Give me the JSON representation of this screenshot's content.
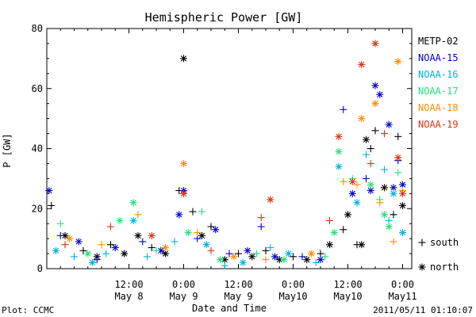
{
  "chart_data": {
    "type": "scatter",
    "title": "Hemispheric Power [GW]",
    "xlabel": "Date and Time",
    "ylabel": "P [GW]",
    "ylim": [
      0,
      80
    ],
    "xlim": [
      "2011-05-07 18:00",
      "2011-05-11 02:00"
    ],
    "yticks": [
      0,
      20,
      40,
      60,
      80
    ],
    "xticks": [
      {
        "x": "2011-05-08 12:00",
        "time": "12:00",
        "date": "May 8"
      },
      {
        "x": "2011-05-09 00:00",
        "time": "0:00",
        "date": "May 9"
      },
      {
        "x": "2011-05-09 12:00",
        "time": "12:00",
        "date": "May 9"
      },
      {
        "x": "2011-05-10 00:00",
        "time": "0:00",
        "date": "May10"
      },
      {
        "x": "2011-05-10 12:00",
        "time": "12:00",
        "date": "May10"
      },
      {
        "x": "2011-05-11 00:00",
        "time": "0:00",
        "date": "May11"
      }
    ],
    "grid": false,
    "legend_position": "right",
    "marker_legend": [
      {
        "symbol": "+",
        "label": "south"
      },
      {
        "symbol": "*",
        "label": "north"
      }
    ],
    "series": [
      {
        "name": "METP-02",
        "color": "#000000",
        "points": [
          [
            "2011-05-07 19:00",
            21,
            "plus"
          ],
          [
            "2011-05-07 22:00",
            11,
            "star"
          ],
          [
            "2011-05-08 02:00",
            6,
            "plus"
          ],
          [
            "2011-05-08 05:00",
            4,
            "star"
          ],
          [
            "2011-05-08 08:00",
            8,
            "plus"
          ],
          [
            "2011-05-08 11:00",
            5,
            "star"
          ],
          [
            "2011-05-08 14:00",
            11,
            "star"
          ],
          [
            "2011-05-08 17:00",
            7,
            "plus"
          ],
          [
            "2011-05-08 20:00",
            5,
            "star"
          ],
          [
            "2011-05-08 23:00",
            26,
            "plus"
          ],
          [
            "2011-05-09 00:00",
            70,
            "star"
          ],
          [
            "2011-05-09 02:00",
            19,
            "plus"
          ],
          [
            "2011-05-09 04:00",
            11,
            "star"
          ],
          [
            "2011-05-09 06:00",
            14,
            "plus"
          ],
          [
            "2011-05-09 09:00",
            3,
            "star"
          ],
          [
            "2011-05-09 12:00",
            5,
            "plus"
          ],
          [
            "2011-05-09 15:00",
            4,
            "star"
          ],
          [
            "2011-05-09 18:00",
            6,
            "plus"
          ],
          [
            "2011-05-09 21:00",
            3,
            "star"
          ],
          [
            "2011-05-10 00:00",
            4,
            "plus"
          ],
          [
            "2011-05-10 03:00",
            3,
            "star"
          ],
          [
            "2011-05-10 06:00",
            5,
            "plus"
          ],
          [
            "2011-05-10 08:00",
            8,
            "star"
          ],
          [
            "2011-05-10 11:00",
            13,
            "plus"
          ],
          [
            "2011-05-10 12:00",
            18,
            "star"
          ],
          [
            "2011-05-10 14:00",
            8,
            "plus"
          ],
          [
            "2011-05-10 15:00",
            8,
            "star"
          ],
          [
            "2011-05-10 16:00",
            43,
            "star"
          ],
          [
            "2011-05-10 17:00",
            40,
            "plus"
          ],
          [
            "2011-05-10 18:00",
            46,
            "plus"
          ],
          [
            "2011-05-10 20:00",
            27,
            "star"
          ],
          [
            "2011-05-10 22:00",
            18,
            "plus"
          ],
          [
            "2011-05-10 23:00",
            44,
            "plus"
          ],
          [
            "2011-05-11 00:00",
            21,
            "star"
          ]
        ]
      },
      {
        "name": "NOAA-15",
        "color": "#0000cc",
        "points": [
          [
            "2011-05-07 18:30",
            26,
            "star"
          ],
          [
            "2011-05-07 21:00",
            11,
            "plus"
          ],
          [
            "2011-05-08 01:00",
            9,
            "star"
          ],
          [
            "2011-05-08 05:00",
            3,
            "plus"
          ],
          [
            "2011-05-08 09:00",
            7,
            "star"
          ],
          [
            "2011-05-08 15:00",
            9,
            "plus"
          ],
          [
            "2011-05-08 19:00",
            6,
            "star"
          ],
          [
            "2011-05-08 23:00",
            18,
            "star"
          ],
          [
            "2011-05-09 00:00",
            26,
            "star"
          ],
          [
            "2011-05-09 03:00",
            10,
            "plus"
          ],
          [
            "2011-05-09 07:00",
            13,
            "star"
          ],
          [
            "2011-05-09 10:00",
            5,
            "plus"
          ],
          [
            "2011-05-09 14:00",
            6,
            "star"
          ],
          [
            "2011-05-09 17:00",
            14,
            "plus"
          ],
          [
            "2011-05-09 20:00",
            4,
            "star"
          ],
          [
            "2011-05-10 02:00",
            4,
            "plus"
          ],
          [
            "2011-05-10 06:00",
            3,
            "star"
          ],
          [
            "2011-05-10 11:00",
            53,
            "plus"
          ],
          [
            "2011-05-10 13:00",
            25,
            "star"
          ],
          [
            "2011-05-10 16:00",
            30,
            "plus"
          ],
          [
            "2011-05-10 18:00",
            61,
            "star"
          ],
          [
            "2011-05-10 19:00",
            58,
            "star"
          ],
          [
            "2011-05-10 21:00",
            48,
            "star"
          ],
          [
            "2011-05-10 22:00",
            27,
            "star"
          ],
          [
            "2011-05-11 00:00",
            28,
            "star"
          ],
          [
            "2011-05-10 23:00",
            36,
            "plus"
          ],
          [
            "2011-05-10 17:00",
            26,
            "star"
          ]
        ]
      },
      {
        "name": "NOAA-16",
        "color": "#00b0e0",
        "points": [
          [
            "2011-05-07 20:00",
            6,
            "star"
          ],
          [
            "2011-05-08 00:00",
            4,
            "plus"
          ],
          [
            "2011-05-08 04:00",
            2,
            "star"
          ],
          [
            "2011-05-08 07:00",
            5,
            "plus"
          ],
          [
            "2011-05-08 13:00",
            16,
            "star"
          ],
          [
            "2011-05-08 16:00",
            4,
            "plus"
          ],
          [
            "2011-05-08 22:00",
            9,
            "plus"
          ],
          [
            "2011-05-09 05:00",
            8,
            "star"
          ],
          [
            "2011-05-09 09:00",
            1,
            "plus"
          ],
          [
            "2011-05-09 13:00",
            2,
            "star"
          ],
          [
            "2011-05-09 19:00",
            7,
            "plus"
          ],
          [
            "2011-05-09 23:00",
            5,
            "star"
          ],
          [
            "2011-05-10 05:00",
            2,
            "plus"
          ],
          [
            "2011-05-10 10:00",
            34,
            "star"
          ],
          [
            "2011-05-10 14:00",
            22,
            "star"
          ],
          [
            "2011-05-10 16:00",
            38,
            "plus"
          ],
          [
            "2011-05-10 20:00",
            33,
            "plus"
          ],
          [
            "2011-05-10 22:00",
            25,
            "star"
          ],
          [
            "2011-05-11 00:00",
            12,
            "star"
          ],
          [
            "2011-05-10 21:00",
            16,
            "plus"
          ]
        ]
      },
      {
        "name": "NOAA-17",
        "color": "#22e07a",
        "points": [
          [
            "2011-05-07 21:00",
            15,
            "plus"
          ],
          [
            "2011-05-08 03:00",
            5,
            "star"
          ],
          [
            "2011-05-08 10:00",
            16,
            "star"
          ],
          [
            "2011-05-08 13:00",
            22,
            "star"
          ],
          [
            "2011-05-08 18:00",
            6,
            "plus"
          ],
          [
            "2011-05-09 01:00",
            12,
            "star"
          ],
          [
            "2011-05-09 04:00",
            19,
            "plus"
          ],
          [
            "2011-05-09 08:00",
            3,
            "star"
          ],
          [
            "2011-05-09 16:00",
            5,
            "plus"
          ],
          [
            "2011-05-09 22:00",
            3,
            "star"
          ],
          [
            "2011-05-10 07:00",
            4,
            "plus"
          ],
          [
            "2011-05-10 09:00",
            12,
            "star"
          ],
          [
            "2011-05-10 10:00",
            39,
            "star"
          ],
          [
            "2011-05-10 13:00",
            30,
            "plus"
          ],
          [
            "2011-05-10 17:00",
            28,
            "star"
          ],
          [
            "2011-05-10 19:00",
            23,
            "plus"
          ],
          [
            "2011-05-10 20:00",
            18,
            "star"
          ],
          [
            "2011-05-10 23:00",
            32,
            "plus"
          ],
          [
            "2011-05-10 21:00",
            14,
            "star"
          ]
        ]
      },
      {
        "name": "NOAA-18",
        "color": "#ff8c00",
        "points": [
          [
            "2011-05-07 23:00",
            10,
            "star"
          ],
          [
            "2011-05-08 06:00",
            8,
            "plus"
          ],
          [
            "2011-05-08 14:00",
            18,
            "plus"
          ],
          [
            "2011-05-08 20:00",
            7,
            "star"
          ],
          [
            "2011-05-09 00:00",
            35,
            "star"
          ],
          [
            "2011-05-09 03:00",
            12,
            "plus"
          ],
          [
            "2011-05-09 11:00",
            4,
            "star"
          ],
          [
            "2011-05-09 18:00",
            3,
            "plus"
          ],
          [
            "2011-05-10 04:00",
            5,
            "star"
          ],
          [
            "2011-05-10 11:00",
            29,
            "plus"
          ],
          [
            "2011-05-10 14:00",
            28,
            "plus"
          ],
          [
            "2011-05-10 15:00",
            50,
            "star"
          ],
          [
            "2011-05-10 18:00",
            55,
            "star"
          ],
          [
            "2011-05-10 19:00",
            22,
            "plus"
          ],
          [
            "2011-05-10 22:00",
            9,
            "plus"
          ],
          [
            "2011-05-10 23:00",
            69,
            "star"
          ],
          [
            "2011-05-11 00:00",
            26,
            "plus"
          ]
        ]
      },
      {
        "name": "NOAA-19",
        "color": "#e03010",
        "points": [
          [
            "2011-05-07 22:00",
            8,
            "plus"
          ],
          [
            "2011-05-08 08:00",
            14,
            "plus"
          ],
          [
            "2011-05-08 17:00",
            11,
            "star"
          ],
          [
            "2011-05-09 00:00",
            25,
            "star"
          ],
          [
            "2011-05-09 06:00",
            6,
            "plus"
          ],
          [
            "2011-05-09 17:00",
            17,
            "plus"
          ],
          [
            "2011-05-09 19:00",
            23,
            "star"
          ],
          [
            "2011-05-10 08:00",
            16,
            "plus"
          ],
          [
            "2011-05-10 10:00",
            44,
            "star"
          ],
          [
            "2011-05-10 13:00",
            29,
            "star"
          ],
          [
            "2011-05-10 15:00",
            68,
            "star"
          ],
          [
            "2011-05-10 17:00",
            35,
            "plus"
          ],
          [
            "2011-05-10 18:00",
            75,
            "star"
          ],
          [
            "2011-05-10 20:00",
            45,
            "plus"
          ],
          [
            "2011-05-10 23:00",
            37,
            "star"
          ],
          [
            "2011-05-11 00:00",
            25,
            "star"
          ]
        ]
      }
    ]
  },
  "footer": {
    "left": "Plot: CCMC",
    "right": "2011/05/11 01:10:07"
  }
}
